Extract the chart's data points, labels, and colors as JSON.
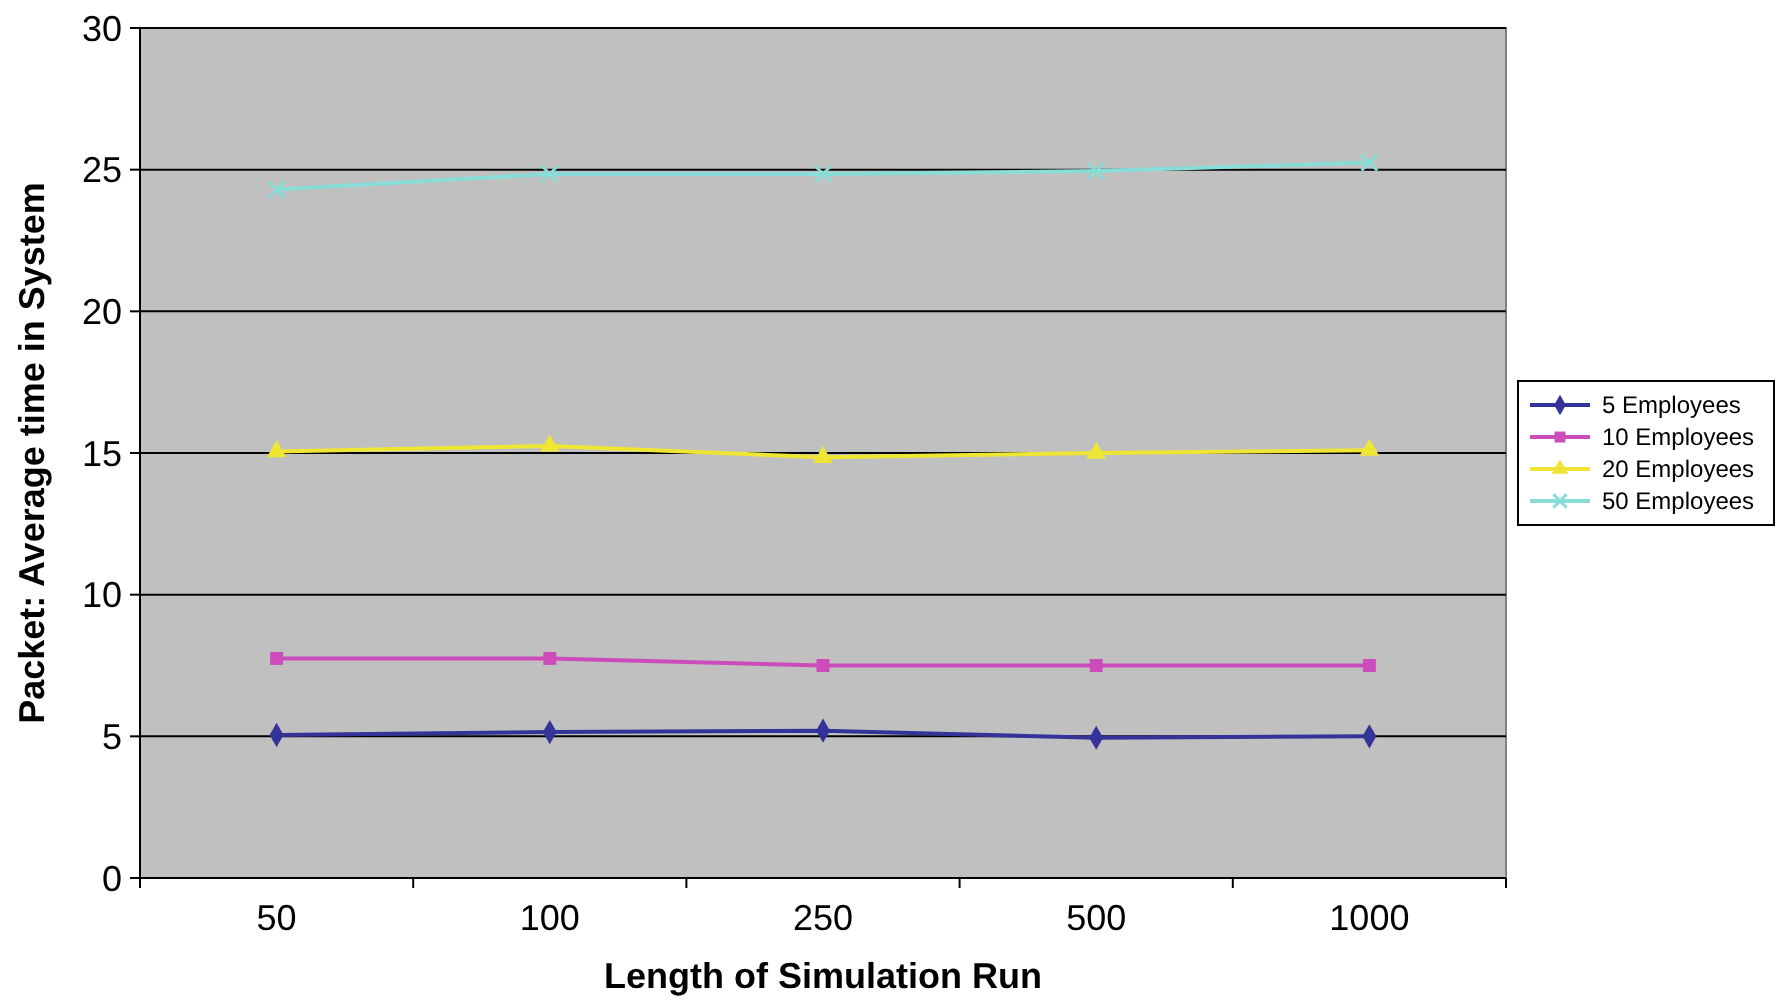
{
  "chart_data": {
    "type": "line",
    "xlabel": "Length of Simulation Run",
    "ylabel": "Packet: Average time in System",
    "categories": [
      "50",
      "100",
      "250",
      "500",
      "1000"
    ],
    "series": [
      {
        "name": "5 Employees",
        "color": "#333399",
        "marker": "diamond",
        "values": [
          5.05,
          5.15,
          5.2,
          4.95,
          5.0
        ]
      },
      {
        "name": "10 Employees",
        "color": "#cc4cbb",
        "marker": "square",
        "values": [
          7.75,
          7.75,
          7.5,
          7.5,
          7.5
        ]
      },
      {
        "name": "20 Employees",
        "color": "#eee633",
        "marker": "triangle",
        "values": [
          15.05,
          15.25,
          14.85,
          15.0,
          15.1
        ]
      },
      {
        "name": "50 Employees",
        "color": "#88ddd8",
        "marker": "cross",
        "values": [
          24.3,
          24.85,
          24.85,
          24.95,
          25.25
        ]
      }
    ],
    "ylim": [
      0,
      30
    ],
    "yticks": [
      0,
      5,
      10,
      15,
      20,
      25,
      30
    ],
    "grid": "y",
    "legend": "right"
  }
}
